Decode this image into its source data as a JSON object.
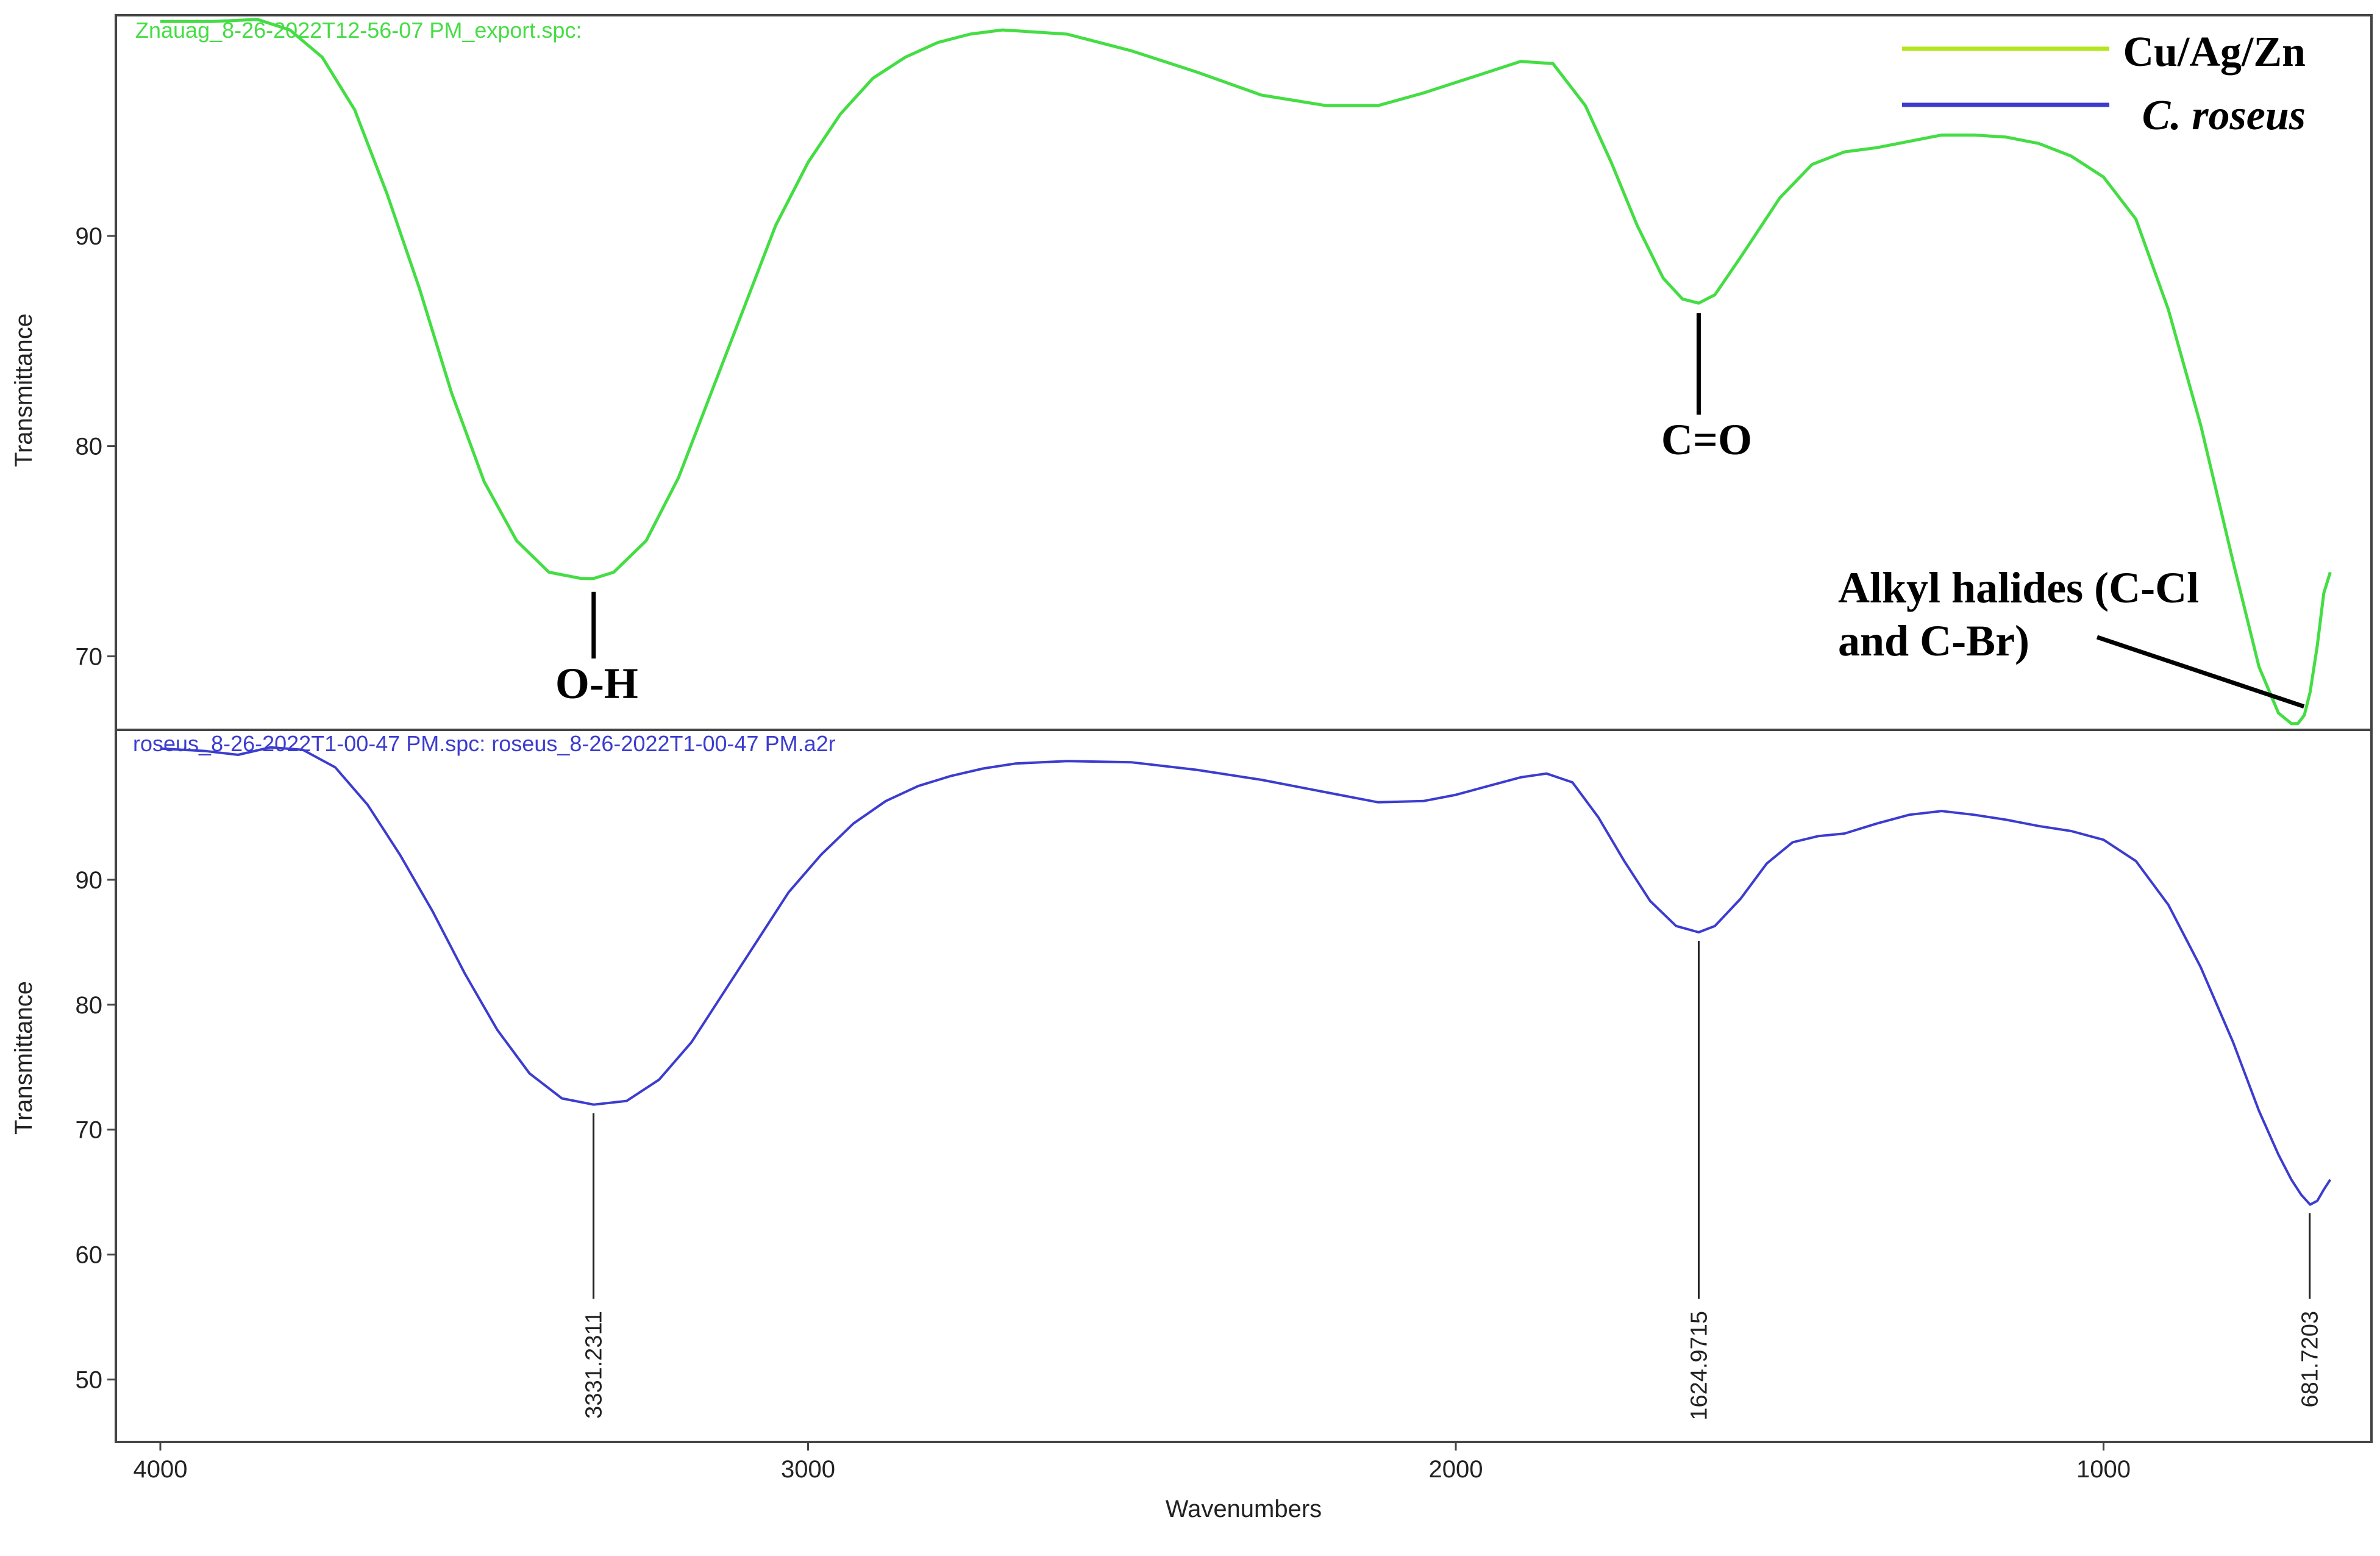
{
  "chart_data": [
    {
      "type": "line",
      "title": "Znauag_8-26-2022T12-56-07 PM_export.spc:",
      "xlabel": "",
      "ylabel": "Transmittance",
      "xlim": [
        4000,
        650
      ],
      "ylim": [
        66.5,
        100.5
      ],
      "y_ticks": [
        70,
        80,
        90
      ],
      "y_tick_labels": [
        "70",
        "80",
        "90"
      ],
      "grid": false,
      "legend": {
        "placement": "top-right",
        "entries": [
          {
            "label": "Cu/Ag/Zn",
            "color": "#b5e61d"
          },
          {
            "label": "C. roseus",
            "color": "#3c3ccf"
          }
        ]
      },
      "series": [
        {
          "color": "#44dd44",
          "x": [
            4000,
            3920,
            3850,
            3800,
            3750,
            3700,
            3650,
            3600,
            3550,
            3500,
            3450,
            3400,
            3350,
            3331,
            3300,
            3250,
            3200,
            3150,
            3100,
            3050,
            3000,
            2950,
            2900,
            2850,
            2800,
            2750,
            2700,
            2600,
            2500,
            2400,
            2300,
            2200,
            2120,
            2050,
            2000,
            1950,
            1900,
            1850,
            1800,
            1760,
            1720,
            1680,
            1650,
            1625,
            1600,
            1560,
            1500,
            1450,
            1400,
            1350,
            1300,
            1250,
            1200,
            1150,
            1100,
            1050,
            1000,
            950,
            900,
            850,
            800,
            760,
            730,
            710,
            700,
            690,
            681,
            670,
            660,
            650
          ],
          "y": [
            100.2,
            100.2,
            100.3,
            99.8,
            98.5,
            96.0,
            92.0,
            87.5,
            82.5,
            78.3,
            75.5,
            74.0,
            73.7,
            73.7,
            74.0,
            75.5,
            78.5,
            82.5,
            86.5,
            90.5,
            93.5,
            95.8,
            97.5,
            98.5,
            99.2,
            99.6,
            99.8,
            99.6,
            98.8,
            97.8,
            96.7,
            96.2,
            96.2,
            96.8,
            97.3,
            97.8,
            98.3,
            98.2,
            96.2,
            93.5,
            90.5,
            88.0,
            87.0,
            86.8,
            87.2,
            89.0,
            91.8,
            93.4,
            94.0,
            94.2,
            94.5,
            94.8,
            94.8,
            94.7,
            94.4,
            93.8,
            92.8,
            90.8,
            86.5,
            81.0,
            74.5,
            69.5,
            67.3,
            66.8,
            66.8,
            67.2,
            68.3,
            70.5,
            73.0,
            74.0
          ]
        }
      ]
    },
    {
      "type": "line",
      "title": "roseus_8-26-2022T1-00-47 PM.spc: roseus_8-26-2022T1-00-47 PM.a2r",
      "xlabel": "Wavenumbers",
      "ylabel": "Transmittance",
      "xlim": [
        4000,
        650
      ],
      "ylim": [
        45,
        102
      ],
      "y_ticks": [
        50,
        60,
        70,
        80,
        90
      ],
      "y_tick_labels": [
        "50",
        "60",
        "70",
        "80",
        "90"
      ],
      "x_ticks": [
        4000,
        3000,
        2000,
        1000
      ],
      "x_tick_labels": [
        "4000",
        "3000",
        "2000",
        "1000"
      ],
      "grid": false,
      "series": [
        {
          "color": "#3c3ccf",
          "x": [
            4000,
            3930,
            3880,
            3830,
            3780,
            3730,
            3680,
            3630,
            3580,
            3530,
            3480,
            3430,
            3380,
            3331,
            3280,
            3230,
            3180,
            3130,
            3080,
            3030,
            2980,
            2930,
            2880,
            2830,
            2780,
            2730,
            2680,
            2600,
            2500,
            2400,
            2300,
            2200,
            2120,
            2050,
            2000,
            1950,
            1900,
            1860,
            1820,
            1780,
            1740,
            1700,
            1660,
            1625,
            1600,
            1560,
            1520,
            1480,
            1440,
            1400,
            1350,
            1300,
            1250,
            1200,
            1150,
            1100,
            1050,
            1000,
            950,
            900,
            850,
            800,
            760,
            730,
            710,
            695,
            681,
            670,
            660,
            650
          ],
          "y": [
            100.5,
            100.3,
            100.0,
            100.6,
            100.4,
            99.0,
            96.0,
            92.0,
            87.5,
            82.5,
            78.0,
            74.5,
            72.5,
            72.0,
            72.3,
            74.0,
            77.0,
            81.0,
            85.0,
            89.0,
            92.0,
            94.5,
            96.3,
            97.5,
            98.3,
            98.9,
            99.3,
            99.5,
            99.4,
            98.8,
            98.0,
            97.0,
            96.2,
            96.3,
            96.8,
            97.5,
            98.2,
            98.5,
            97.8,
            95.0,
            91.5,
            88.3,
            86.3,
            85.8,
            86.3,
            88.5,
            91.3,
            93.0,
            93.5,
            93.7,
            94.5,
            95.2,
            95.5,
            95.2,
            94.8,
            94.3,
            93.9,
            93.2,
            91.5,
            88.0,
            83.0,
            77.0,
            71.5,
            68.0,
            66.0,
            64.8,
            64.0,
            64.3,
            65.2,
            66.0
          ]
        }
      ]
    }
  ],
  "annotations": {
    "top": {
      "oh": "O-H",
      "co": "C=O",
      "alkyl_line1": "Alkyl halides (C-Cl",
      "alkyl_line2": "and C-Br)"
    },
    "bottom": {
      "peaks": [
        {
          "x": 3331.2311,
          "y": 72.0,
          "label": "3331.2311"
        },
        {
          "x": 1624.9715,
          "y": 85.8,
          "label": "1624.9715"
        },
        {
          "x": 681.7203,
          "y": 64.0,
          "label": "681.7203"
        }
      ]
    }
  }
}
